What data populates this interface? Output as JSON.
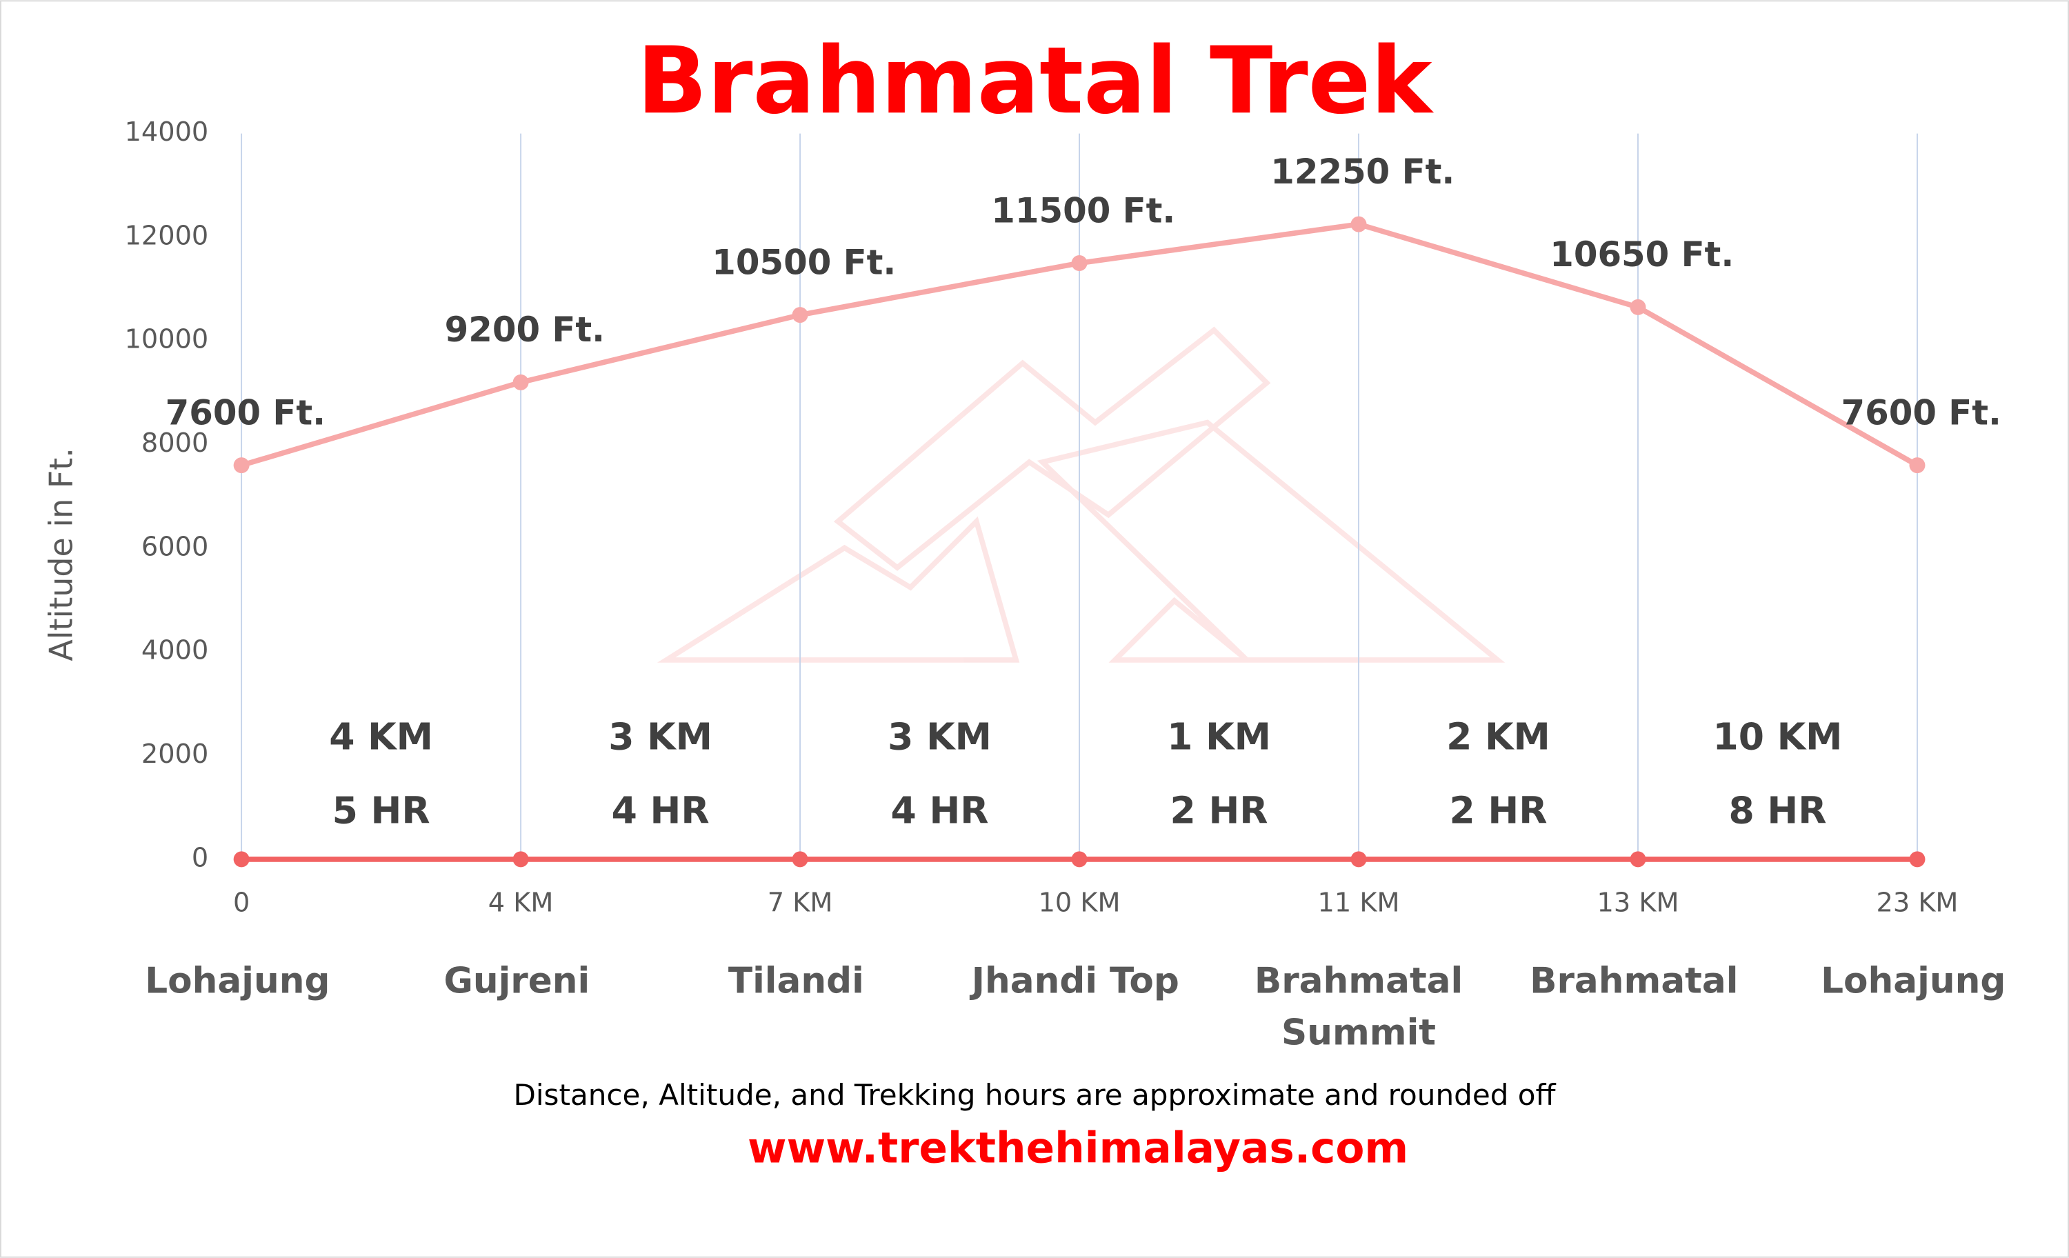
{
  "chart_data": {
    "type": "line",
    "title": "Brahmatal Trek",
    "ylabel": "Altitude in Ft.",
    "categories": [
      "0",
      "4 KM",
      "7 KM",
      "10 KM",
      "11 KM",
      "13 KM",
      "23 KM"
    ],
    "locations": [
      "Lohajung",
      "Gujreni",
      "Tilandi",
      "Jhandi Top",
      "Brahmatal Summit",
      "Brahmatal",
      "Lohajung"
    ],
    "segment_distances": [
      "4 KM",
      "3 KM",
      "3 KM",
      "1 KM",
      "2 KM",
      "10 KM"
    ],
    "segment_hours": [
      "5 HR",
      "4 HR",
      "4 HR",
      "2 HR",
      "2 HR",
      "8 HR"
    ],
    "series": [
      {
        "color": "#f7a8a8",
        "values": [
          7600,
          9200,
          10500,
          11500,
          12250,
          10650,
          7600
        ],
        "value_labels": [
          "7600 Ft.",
          "9200 Ft.",
          "10500 Ft.",
          "11500 Ft.",
          "12250 Ft.",
          "10650 Ft.",
          "7600 Ft."
        ]
      },
      {
        "color": "#f26262",
        "values": [
          0,
          0,
          0,
          0,
          0,
          0,
          0
        ]
      }
    ],
    "ylim": [
      0,
      14000
    ],
    "yticks": [
      0,
      2000,
      4000,
      6000,
      8000,
      10000,
      12000,
      14000
    ],
    "grid": true,
    "note": "Distance, Altitude, and Trekking hours are approximate and rounded off",
    "website": "www.trekthehimalayas.com"
  }
}
